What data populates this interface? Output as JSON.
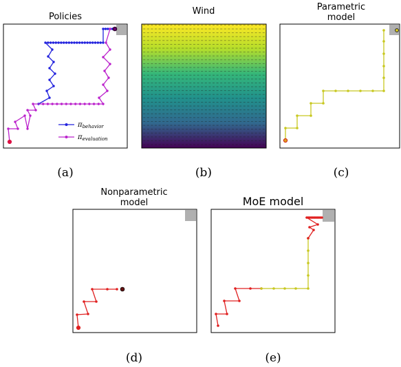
{
  "panels": {
    "a": {
      "title": "Policies",
      "caption": "(a)"
    },
    "b": {
      "title": "Wind",
      "caption": "(b)"
    },
    "c": {
      "title_line1": "Parametric",
      "title_line2": "model",
      "caption": "(c)"
    },
    "d": {
      "title_line1": "Nonparametric",
      "title_line2": "model",
      "caption": "(d)"
    },
    "e": {
      "title": "MoE model",
      "caption": "(e)"
    }
  },
  "legend": {
    "behavior": {
      "symbol": "π",
      "subscript": "behavior",
      "color": "#2222dd"
    },
    "evaluation": {
      "symbol": "π",
      "subscript": "evaluation",
      "color": "#bb22cc"
    }
  },
  "colors": {
    "behavior": "#2222dd",
    "evaluation": "#bb22cc",
    "parametric": "#c8c820",
    "nonparametric": "#e02020",
    "goal": "#b0b0b0",
    "wind_top": "#fde725",
    "wind_mid": "#21918c",
    "wind_bottom": "#440154"
  }
}
